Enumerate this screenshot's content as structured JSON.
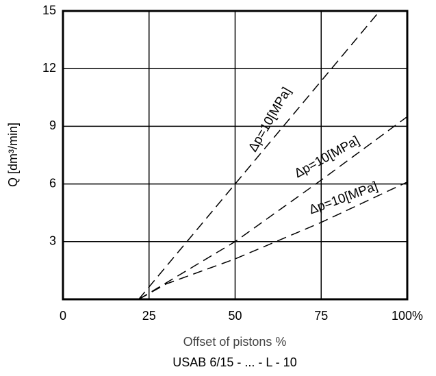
{
  "chart_data": {
    "type": "line",
    "x_label": "Offset of pistons %",
    "y_label": "Q [dm³/min]",
    "caption": "USAB 6/15 - ... - L - 10",
    "xlim": [
      0,
      100
    ],
    "xticks": [
      0,
      25,
      50,
      75,
      {
        "value": 100,
        "label": "100%"
      }
    ],
    "ylim": [
      0,
      15
    ],
    "yticks": [
      3,
      6,
      9,
      12,
      15
    ],
    "grid": true,
    "series": [
      {
        "name": "Δp=10[MPa]",
        "color": "#000000",
        "x": [
          22,
          50,
          92
        ],
        "values": [
          0,
          6,
          15
        ]
      },
      {
        "name": "Δp=10[MPa]",
        "color": "#000000",
        "x": [
          22,
          50,
          75,
          100
        ],
        "values": [
          0,
          3,
          6.2,
          9.5
        ]
      },
      {
        "name": "Δp=10[MPa]",
        "color": "#000000",
        "x": [
          22,
          30,
          50,
          75,
          100
        ],
        "values": [
          0,
          0.8,
          2.1,
          4,
          6.1
        ]
      }
    ]
  }
}
